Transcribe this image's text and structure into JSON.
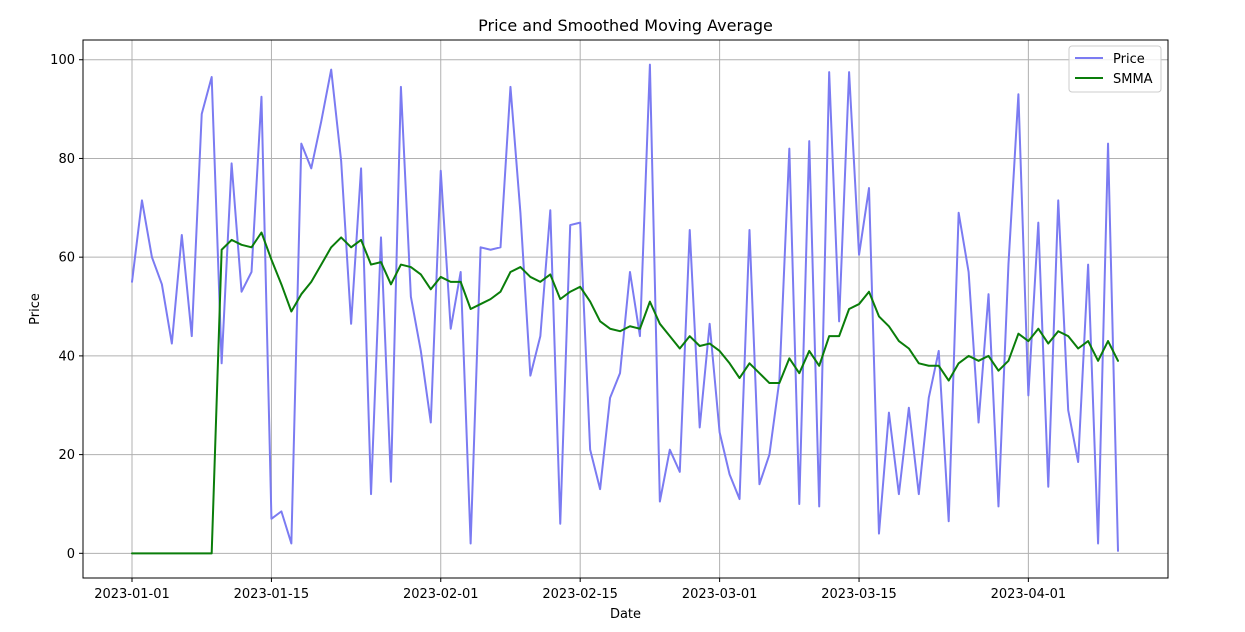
{
  "chart_data": {
    "type": "line",
    "title": "Price and Smoothed Moving Average",
    "xlabel": "Date",
    "ylabel": "Price",
    "x_start": "2023-01-01",
    "x_end": "2023-04-10",
    "x_ticks": [
      "2023-01-01",
      "2023-01-15",
      "2023-02-01",
      "2023-02-15",
      "2023-03-01",
      "2023-03-15",
      "2023-04-01"
    ],
    "ylim": [
      -5,
      104
    ],
    "y_ticks": [
      0,
      20,
      40,
      60,
      80,
      100
    ],
    "grid": true,
    "legend_position": "top-right",
    "series": [
      {
        "name": "Price",
        "color": "#7b7bf2",
        "values": [
          55,
          71.5,
          60,
          54.5,
          42.5,
          64.5,
          44,
          89,
          96.5,
          38.5,
          79,
          53,
          57,
          92.5,
          7,
          8.5,
          2,
          83,
          78,
          87.5,
          98,
          79.5,
          46.5,
          78,
          12,
          64,
          14.5,
          94.5,
          52,
          41,
          26.5,
          77.5,
          45.5,
          57,
          2,
          62,
          61.5,
          62,
          94.5,
          69,
          36,
          44,
          69.5,
          6,
          66.5,
          67,
          21,
          13,
          31.5,
          36.5,
          57,
          44,
          99,
          10.5,
          21,
          16.5,
          65.5,
          25.5,
          46.5,
          24.5,
          16,
          11,
          65.5,
          14,
          20,
          35,
          82,
          10,
          83.5,
          9.5,
          97.5,
          47,
          97.5,
          60.5,
          74,
          4,
          28.5,
          12,
          29.5,
          12,
          31.5,
          41,
          6.5,
          69,
          57,
          26.5,
          52.5,
          9.5,
          58.5,
          93,
          32,
          67,
          13.5,
          71.5,
          29,
          18.5,
          58.5,
          2,
          83,
          0.5
        ]
      },
      {
        "name": "SMMA",
        "color": "#0a7d0a",
        "values": [
          0,
          0,
          0,
          0,
          0,
          0,
          0,
          0,
          0,
          61.5,
          63.5,
          62.5,
          62,
          65,
          59.5,
          54.5,
          49,
          52.5,
          55,
          58.5,
          62,
          64,
          62,
          63.5,
          58.5,
          59,
          54.5,
          58.5,
          58,
          56.5,
          53.5,
          56,
          55,
          55,
          49.5,
          50.5,
          51.5,
          53,
          57,
          58,
          56,
          55,
          56.5,
          51.5,
          53,
          54,
          51,
          47,
          45.5,
          45,
          46,
          45.5,
          51,
          46.5,
          44,
          41.5,
          44,
          42,
          42.5,
          41,
          38.5,
          35.5,
          38.5,
          36.5,
          34.5,
          34.5,
          39.5,
          36.5,
          41,
          38,
          44,
          44,
          49.5,
          50.5,
          53,
          48,
          46,
          43,
          41.5,
          38.5,
          38,
          38,
          35,
          38.5,
          40,
          39,
          40,
          37,
          39,
          44.5,
          43,
          45.5,
          42.5,
          45,
          44,
          41.5,
          43,
          39,
          43,
          39
        ]
      }
    ]
  }
}
